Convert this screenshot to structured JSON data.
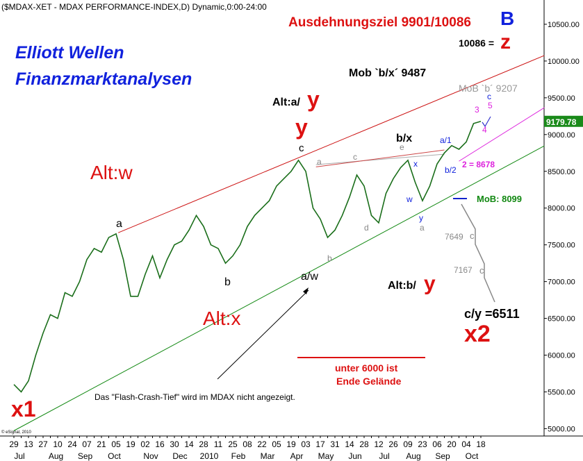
{
  "chart_data": {
    "type": "line",
    "title": "($MDAX-XET - MDAX PERFORMANCE-INDEX,D) Dynamic,0:00-24:00",
    "categories": [
      "29",
      null,
      "13",
      null,
      "27",
      null,
      "10",
      null,
      "24",
      null,
      "07",
      null,
      "21",
      null,
      "05",
      null,
      "19",
      null,
      "02",
      null,
      "16",
      null,
      "30",
      null,
      "14",
      null,
      "28",
      null,
      "11",
      null,
      "25",
      null,
      "08",
      null,
      "22",
      null,
      "05",
      null,
      "19",
      null,
      "03",
      null,
      "17",
      null,
      "31",
      null,
      "14",
      null,
      "28",
      null,
      "12",
      null,
      "26",
      null,
      "09",
      null,
      "23",
      null,
      "06",
      null,
      "20",
      null,
      "04",
      null,
      "18"
    ],
    "months": [
      {
        "label": "Jul",
        "week": 0
      },
      {
        "label": "Aug",
        "week": 5
      },
      {
        "label": "Sep",
        "week": 9
      },
      {
        "label": "Oct",
        "week": 13
      },
      {
        "label": "Nov",
        "week": 18
      },
      {
        "label": "Dec",
        "week": 22
      },
      {
        "label": "2010",
        "week": 26
      },
      {
        "label": "Feb",
        "week": 30
      },
      {
        "label": "Mar",
        "week": 34
      },
      {
        "label": "Apr",
        "week": 38
      },
      {
        "label": "May",
        "week": 42
      },
      {
        "label": "Jun",
        "week": 46
      },
      {
        "label": "Jul",
        "week": 50
      },
      {
        "label": "Aug",
        "week": 54
      },
      {
        "label": "Sep",
        "week": 58
      },
      {
        "label": "Oct",
        "week": 62
      }
    ],
    "series": [
      {
        "name": "MDAX",
        "color": "#1a6e1a",
        "values": [
          5600,
          5500,
          5650,
          6000,
          6300,
          6550,
          6500,
          6850,
          6800,
          7000,
          7300,
          7450,
          7400,
          7600,
          7650,
          7300,
          6800,
          6800,
          7100,
          7350,
          7050,
          7300,
          7500,
          7550,
          7700,
          7900,
          7750,
          7500,
          7450,
          7250,
          7350,
          7500,
          7750,
          7900,
          8000,
          8100,
          8300,
          8400,
          8500,
          8650,
          8500,
          8000,
          7850,
          7600,
          7700,
          7900,
          8150,
          8450,
          8300,
          7900,
          7800,
          8200,
          8400,
          8550,
          8650,
          8350,
          8100,
          8300,
          8600,
          8750,
          8850,
          8800,
          8900,
          9150,
          9180
        ]
      }
    ],
    "last_value": 9179.78,
    "last_value_color": "#1a8a1a",
    "ylim": [
      4900,
      10830
    ],
    "yticks": [
      {
        "value": 5000,
        "label": "5000.00"
      },
      {
        "value": 5500,
        "label": "5500.00"
      },
      {
        "value": 6000,
        "label": "6000.00"
      },
      {
        "value": 6500,
        "label": "6500.00"
      },
      {
        "value": 7000,
        "label": "7000.00"
      },
      {
        "value": 7500,
        "label": "7500.00"
      },
      {
        "value": 8000,
        "label": "8000.00"
      },
      {
        "value": 8500,
        "label": "8500.00"
      },
      {
        "value": 9000,
        "label": "9000.00"
      },
      {
        "value": 9500,
        "label": "9500.00"
      },
      {
        "value": 10000,
        "label": "10000.00"
      },
      {
        "value": 10500,
        "label": "10500.00"
      }
    ],
    "trend_lines": [
      {
        "color": "#cc1111",
        "from": {
          "week": 14.3,
          "value": 7665
        },
        "to": {
          "week": 72.7,
          "value": 10075
        }
      },
      {
        "color": "#118811",
        "from": {
          "week": 0,
          "value": 4972
        },
        "to": {
          "week": 72.7,
          "value": 8846
        }
      },
      {
        "color": "#dd22dd",
        "from": {
          "week": 61,
          "value": 8638
        },
        "to": {
          "week": 72.7,
          "value": 9366
        }
      },
      {
        "color": "#aaaaaa",
        "from": {
          "week": 41.4,
          "value": 8591
        },
        "to": {
          "week": 59,
          "value": 8733
        }
      },
      {
        "color": "#cc4444",
        "from": {
          "week": 41.4,
          "value": 8560
        },
        "to": {
          "week": 59,
          "value": 8790
        }
      }
    ],
    "annotations": [
      "Ausdehnungsziel 9901/10086",
      "B",
      "10086 =",
      "z",
      "Elliott Wellen",
      "Finanzmarktanalysen",
      "Mob `b/x´ 9487",
      "MoB `b´ 9207",
      "Alt:a/",
      "y",
      "y",
      "c",
      "b/x",
      "Alt:w",
      "a",
      "b",
      "a/w",
      "Alt:x",
      "Alt:b/",
      "y",
      "c/y =6511",
      "x2",
      "x1",
      "unter 6000 ist",
      "Ende Gelände",
      "Das \"Flash-Crash-Tief\" wird im MDAX nicht angezeigt.",
      "MoB: 8099",
      "7649",
      "7167",
      "c",
      "c",
      "a",
      "c",
      "e",
      "a/1",
      "3",
      "c",
      "5",
      "4",
      "b/2",
      "2 = 8678",
      "x",
      "w",
      "y",
      "a",
      "b",
      "d",
      "© eSignal, 2010"
    ]
  }
}
